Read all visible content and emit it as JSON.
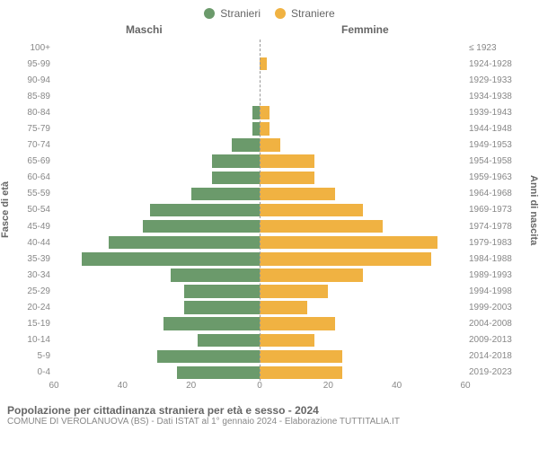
{
  "legend": {
    "male": {
      "label": "Stranieri",
      "color": "#6b9a6b"
    },
    "female": {
      "label": "Straniere",
      "color": "#f0b242"
    }
  },
  "gender_headers": {
    "male": "Maschi",
    "female": "Femmine"
  },
  "axis_labels": {
    "left": "Fasce di età",
    "right": "Anni di nascita"
  },
  "chart": {
    "type": "population-pyramid",
    "xmax": 60,
    "xtick_step": 20,
    "bg": "#ffffff",
    "center_line_color": "#999999",
    "rows": [
      {
        "age": "100+",
        "birth": "≤ 1923",
        "m": 0,
        "f": 0
      },
      {
        "age": "95-99",
        "birth": "1924-1928",
        "m": 0,
        "f": 2
      },
      {
        "age": "90-94",
        "birth": "1929-1933",
        "m": 0,
        "f": 0
      },
      {
        "age": "85-89",
        "birth": "1934-1938",
        "m": 0,
        "f": 0
      },
      {
        "age": "80-84",
        "birth": "1939-1943",
        "m": 2,
        "f": 3
      },
      {
        "age": "75-79",
        "birth": "1944-1948",
        "m": 2,
        "f": 3
      },
      {
        "age": "70-74",
        "birth": "1949-1953",
        "m": 8,
        "f": 6
      },
      {
        "age": "65-69",
        "birth": "1954-1958",
        "m": 14,
        "f": 16
      },
      {
        "age": "60-64",
        "birth": "1959-1963",
        "m": 14,
        "f": 16
      },
      {
        "age": "55-59",
        "birth": "1964-1968",
        "m": 20,
        "f": 22
      },
      {
        "age": "50-54",
        "birth": "1969-1973",
        "m": 32,
        "f": 30
      },
      {
        "age": "45-49",
        "birth": "1974-1978",
        "m": 34,
        "f": 36
      },
      {
        "age": "40-44",
        "birth": "1979-1983",
        "m": 44,
        "f": 52
      },
      {
        "age": "35-39",
        "birth": "1984-1988",
        "m": 52,
        "f": 50
      },
      {
        "age": "30-34",
        "birth": "1989-1993",
        "m": 26,
        "f": 30
      },
      {
        "age": "25-29",
        "birth": "1994-1998",
        "m": 22,
        "f": 20
      },
      {
        "age": "20-24",
        "birth": "1999-2003",
        "m": 22,
        "f": 14
      },
      {
        "age": "15-19",
        "birth": "2004-2008",
        "m": 28,
        "f": 22
      },
      {
        "age": "10-14",
        "birth": "2009-2013",
        "m": 18,
        "f": 16
      },
      {
        "age": "5-9",
        "birth": "2014-2018",
        "m": 30,
        "f": 24
      },
      {
        "age": "0-4",
        "birth": "2019-2023",
        "m": 24,
        "f": 24
      }
    ]
  },
  "title": "Popolazione per cittadinanza straniera per età e sesso - 2024",
  "subtitle": "COMUNE DI VEROLANUOVA (BS) - Dati ISTAT al 1° gennaio 2024 - Elaborazione TUTTITALIA.IT"
}
